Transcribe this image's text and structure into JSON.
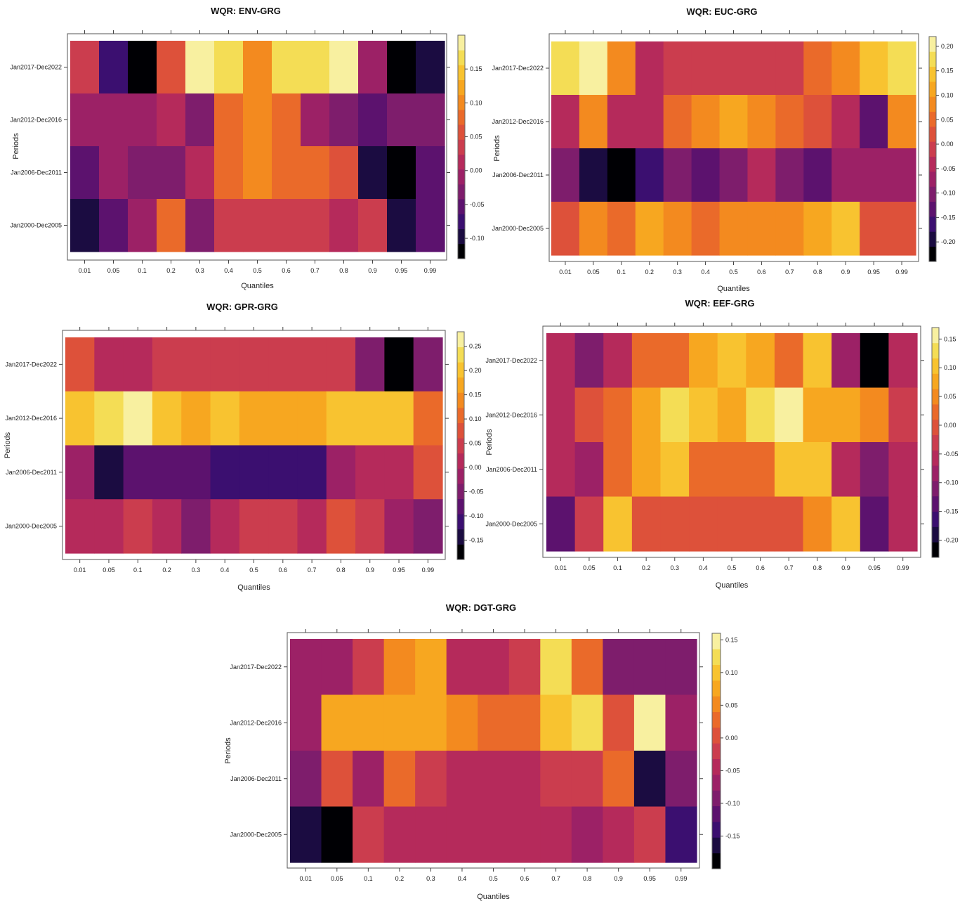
{
  "chart_data": [
    {
      "type": "heatmap",
      "title": "WQR: ENV-GRG",
      "xlabel": "Quantiles",
      "ylabel": "Periods",
      "x": [
        "0.01",
        "0.05",
        "0.1",
        "0.2",
        "0.3",
        "0.4",
        "0.5",
        "0.6",
        "0.7",
        "0.8",
        "0.9",
        "0.95",
        "0.99"
      ],
      "y": [
        "Jan2017-Dec2022",
        "Jan2012-Dec2016",
        "Jan2006-Dec2011",
        "Jan2000-Dec2005"
      ],
      "colorbar_ticks": [
        "0.15",
        "0.10",
        "0.05",
        "0.00",
        "-0.05",
        "-0.10"
      ],
      "colorbar_range": [
        -0.13,
        0.2
      ],
      "values": [
        [
          0.03,
          -0.07,
          -0.13,
          0.06,
          0.19,
          0.17,
          0.11,
          0.16,
          0.16,
          0.18,
          0.0,
          -0.11,
          -0.09
        ],
        [
          0.0,
          0.0,
          -0.02,
          0.02,
          -0.04,
          0.07,
          0.11,
          0.08,
          -0.02,
          -0.04,
          -0.06,
          -0.04,
          -0.04
        ],
        [
          -0.06,
          -0.02,
          -0.03,
          -0.03,
          0.02,
          0.07,
          0.1,
          0.07,
          0.07,
          0.05,
          -0.1,
          -0.11,
          -0.06
        ],
        [
          -0.1,
          -0.05,
          -0.02,
          0.08,
          -0.03,
          0.04,
          0.04,
          0.04,
          0.04,
          0.02,
          0.04,
          -0.09,
          -0.05
        ]
      ]
    },
    {
      "type": "heatmap",
      "title": "WQR: EUC-GRG",
      "xlabel": "Quantiles",
      "ylabel": "Periods",
      "x": [
        "0.01",
        "0.05",
        "0.1",
        "0.2",
        "0.3",
        "0.4",
        "0.5",
        "0.6",
        "0.7",
        "0.8",
        "0.9",
        "0.95",
        "0.99"
      ],
      "y": [
        "Jan2017-Dec2022",
        "Jan2012-Dec2016",
        "Jan2006-Dec2011",
        "Jan2000-Dec2005"
      ],
      "colorbar_ticks": [
        "0.20",
        "0.15",
        "0.10",
        "0.05",
        "0.00",
        "-0.05",
        "-0.10",
        "-0.15",
        "-0.20"
      ],
      "colorbar_range": [
        -0.24,
        0.22
      ],
      "values": [
        [
          0.17,
          0.21,
          0.09,
          -0.05,
          -0.02,
          -0.02,
          -0.02,
          -0.02,
          -0.02,
          0.04,
          0.09,
          0.14,
          0.17
        ],
        [
          -0.04,
          0.07,
          -0.03,
          -0.04,
          0.06,
          0.08,
          0.1,
          0.07,
          0.05,
          0.02,
          -0.04,
          -0.12,
          0.07
        ],
        [
          -0.09,
          -0.18,
          -0.24,
          -0.15,
          -0.11,
          -0.12,
          -0.09,
          -0.05,
          -0.1,
          -0.13,
          -0.08,
          -0.08,
          -0.06
        ],
        [
          0.03,
          0.09,
          0.05,
          0.1,
          0.07,
          0.05,
          0.07,
          0.07,
          0.07,
          0.1,
          0.13,
          0.03,
          0.03
        ]
      ]
    },
    {
      "type": "heatmap",
      "title": "WQR: GPR-GRG",
      "xlabel": "Quantiles",
      "ylabel": "Periods",
      "x": [
        "0.01",
        "0.05",
        "0.1",
        "0.2",
        "0.3",
        "0.4",
        "0.5",
        "0.6",
        "0.7",
        "0.8",
        "0.9",
        "0.95",
        "0.99"
      ],
      "y": [
        "Jan2017-Dec2022",
        "Jan2012-Dec2016",
        "Jan2006-Dec2011",
        "Jan2000-Dec2005"
      ],
      "colorbar_ticks": [
        "0.25",
        "0.20",
        "0.15",
        "0.10",
        "0.05",
        "0.00",
        "-0.05",
        "-0.10",
        "-0.15"
      ],
      "colorbar_range": [
        -0.19,
        0.28
      ],
      "values": [
        [
          0.07,
          0.0,
          0.0,
          0.04,
          0.04,
          0.03,
          0.04,
          0.03,
          0.03,
          0.05,
          -0.04,
          -0.19,
          -0.04
        ],
        [
          0.19,
          0.23,
          0.27,
          0.19,
          0.16,
          0.2,
          0.16,
          0.16,
          0.16,
          0.2,
          0.2,
          0.2,
          0.12
        ],
        [
          -0.02,
          -0.15,
          -0.07,
          -0.07,
          -0.07,
          -0.11,
          -0.11,
          -0.11,
          -0.11,
          -0.02,
          0.02,
          0.02,
          0.08
        ],
        [
          0.02,
          0.02,
          0.04,
          0.0,
          -0.04,
          0.01,
          0.03,
          0.03,
          0.02,
          0.08,
          0.06,
          -0.01,
          -0.05
        ]
      ]
    },
    {
      "type": "heatmap",
      "title": "WQR: EEF-GRG",
      "xlabel": "Quantiles",
      "ylabel": "Periods",
      "x": [
        "0.01",
        "0.05",
        "0.1",
        "0.2",
        "0.3",
        "0.4",
        "0.5",
        "0.6",
        "0.7",
        "0.8",
        "0.9",
        "0.95",
        "0.99"
      ],
      "y": [
        "Jan2017-Dec2022",
        "Jan2012-Dec2016",
        "Jan2006-Dec2011",
        "Jan2000-Dec2005"
      ],
      "colorbar_ticks": [
        "0.15",
        "0.10",
        "0.05",
        "0.00",
        "-0.05",
        "-0.10",
        "-0.15",
        "-0.20"
      ],
      "colorbar_range": [
        -0.23,
        0.17
      ],
      "values": [
        [
          -0.06,
          -0.12,
          -0.06,
          0.02,
          0.02,
          0.07,
          0.11,
          0.07,
          0.02,
          0.11,
          -0.09,
          -0.23,
          -0.06
        ],
        [
          -0.06,
          0.0,
          0.03,
          0.09,
          0.14,
          0.11,
          0.09,
          0.14,
          0.16,
          0.09,
          0.09,
          0.05,
          -0.02
        ],
        [
          -0.06,
          -0.09,
          0.03,
          0.07,
          0.11,
          0.02,
          0.02,
          0.02,
          0.11,
          0.11,
          -0.06,
          -0.11,
          -0.06
        ],
        [
          -0.13,
          -0.02,
          0.11,
          0.0,
          0.0,
          0.0,
          0.0,
          0.0,
          0.0,
          0.05,
          0.11,
          -0.15,
          -0.06
        ]
      ]
    },
    {
      "type": "heatmap",
      "title": "WQR: DGT-GRG",
      "xlabel": "Quantiles",
      "ylabel": "Periods",
      "x": [
        "0.01",
        "0.05",
        "0.1",
        "0.2",
        "0.3",
        "0.4",
        "0.5",
        "0.6",
        "0.7",
        "0.8",
        "0.9",
        "0.95",
        "0.99"
      ],
      "y": [
        "Jan2017-Dec2022",
        "Jan2012-Dec2016",
        "Jan2006-Dec2011",
        "Jan2000-Dec2005"
      ],
      "colorbar_ticks": [
        "0.15",
        "0.10",
        "0.05",
        "0.00",
        "-0.05",
        "-0.10",
        "-0.15"
      ],
      "colorbar_range": [
        -0.2,
        0.16
      ],
      "values": [
        [
          -0.07,
          -0.07,
          -0.03,
          0.04,
          0.08,
          -0.04,
          -0.04,
          -0.01,
          0.13,
          0.02,
          -0.1,
          -0.1,
          -0.1
        ],
        [
          -0.06,
          0.07,
          0.07,
          0.07,
          0.07,
          0.04,
          0.03,
          0.03,
          0.1,
          0.12,
          0.0,
          0.15,
          -0.06
        ],
        [
          -0.1,
          0.01,
          -0.08,
          0.03,
          -0.02,
          -0.05,
          -0.05,
          -0.05,
          -0.01,
          -0.01,
          0.03,
          -0.16,
          -0.09
        ],
        [
          -0.16,
          -0.2,
          -0.02,
          -0.05,
          -0.05,
          -0.05,
          -0.05,
          -0.05,
          -0.05,
          -0.08,
          -0.05,
          -0.03,
          -0.15
        ]
      ]
    }
  ]
}
